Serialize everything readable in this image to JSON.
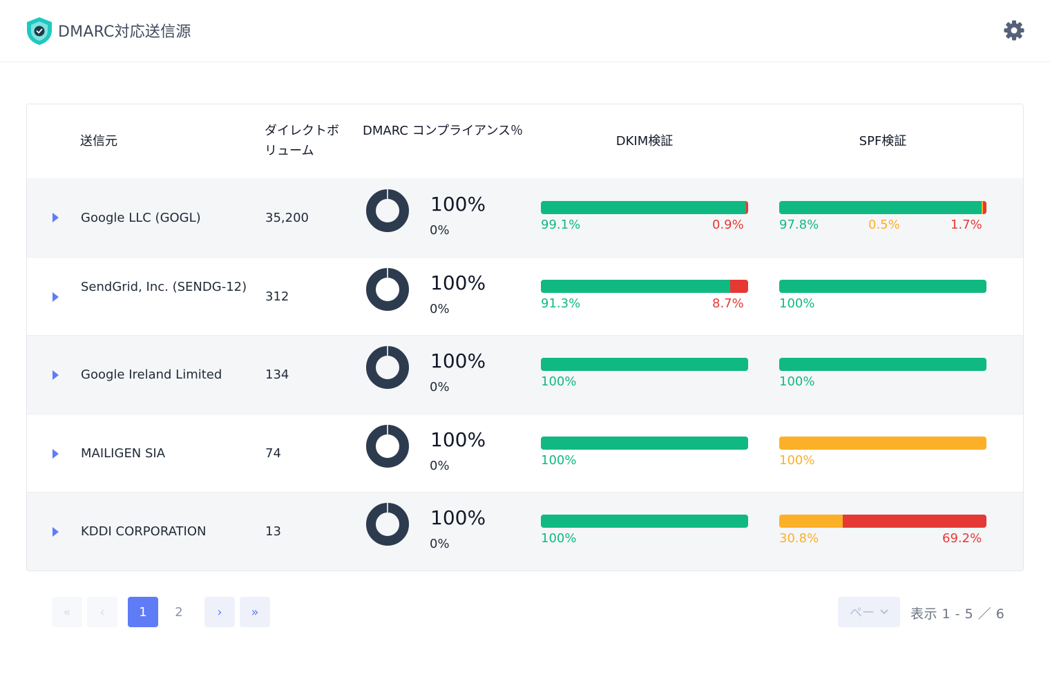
{
  "app": {
    "title": "DMARC対応送信源"
  },
  "table": {
    "headers": {
      "sender": "送信元",
      "volume": "ダイレクトボリューム",
      "dmarc": "DMARC コンプライアンス％",
      "dkim": "DKIM検証",
      "spf": "SPF検証"
    },
    "rows": [
      {
        "sender": "Google LLC (GOGL)",
        "volume": "35,200",
        "dmarc_compliance": "100%",
        "dmarc_fail": "0%",
        "dkim": {
          "pass": 99.1,
          "fail": 0.9,
          "pass_label": "99.1%",
          "fail_label": "0.9%"
        },
        "spf": {
          "pass": 97.8,
          "neutral": 0.5,
          "fail": 1.7,
          "pass_label": "97.8%",
          "neutral_label": "0.5%",
          "fail_label": "1.7%"
        }
      },
      {
        "sender": "SendGrid, Inc. (SENDG-12)",
        "volume": "312",
        "dmarc_compliance": "100%",
        "dmarc_fail": "0%",
        "dkim": {
          "pass": 91.3,
          "fail": 8.7,
          "pass_label": "91.3%",
          "fail_label": "8.7%"
        },
        "spf": {
          "pass": 100,
          "pass_label": "100%"
        }
      },
      {
        "sender": "Google Ireland Limited",
        "volume": "134",
        "dmarc_compliance": "100%",
        "dmarc_fail": "0%",
        "dkim": {
          "pass": 100,
          "pass_label": "100%"
        },
        "spf": {
          "pass": 100,
          "pass_label": "100%"
        }
      },
      {
        "sender": "MAILIGEN SIA",
        "volume": "74",
        "dmarc_compliance": "100%",
        "dmarc_fail": "0%",
        "dkim": {
          "pass": 100,
          "pass_label": "100%"
        },
        "spf": {
          "neutral": 100,
          "neutral_label": "100%"
        }
      },
      {
        "sender": "KDDI CORPORATION",
        "volume": "13",
        "dmarc_compliance": "100%",
        "dmarc_fail": "0%",
        "dkim": {
          "pass": 100,
          "pass_label": "100%"
        },
        "spf": {
          "neutral": 30.8,
          "fail": 69.2,
          "neutral_label": "30.8%",
          "fail_label": "69.2%"
        }
      }
    ]
  },
  "pagination": {
    "first": "«",
    "prev": "‹",
    "pages": [
      "1",
      "2"
    ],
    "next": "›",
    "last": "»",
    "per_page_label": "ペー",
    "range_text": "表示 1 - 5 ／ 6"
  },
  "colors": {
    "pass": "#10b981",
    "neutral": "#fbb027",
    "fail": "#e53935",
    "donut": "#2d3b4e",
    "accent": "#5f7cf7"
  },
  "icons": {
    "logo": "shield-check-icon",
    "settings": "gear-icon",
    "expand": "caret-right-icon"
  }
}
